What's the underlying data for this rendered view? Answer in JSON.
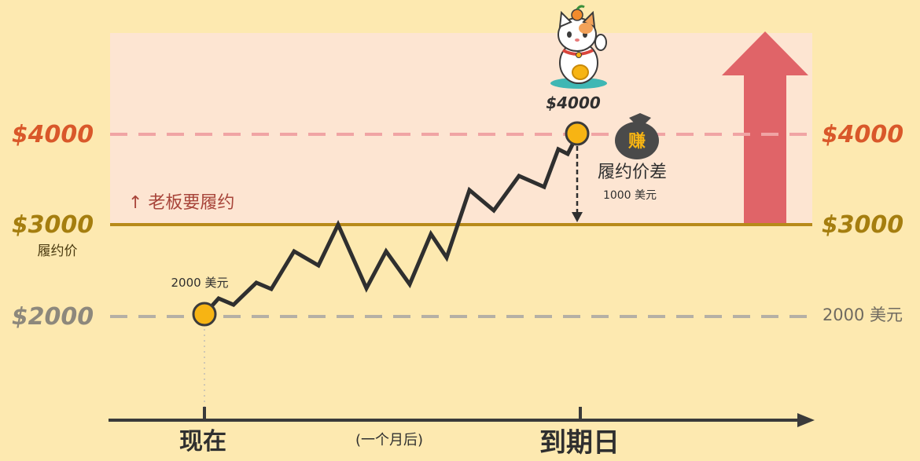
{
  "levels": {
    "high": {
      "left_label": "$4000",
      "right_label": "$4000"
    },
    "strike": {
      "left_label": "$3000",
      "left_sub": "履约价",
      "right_label": "$3000"
    },
    "low": {
      "left_label": "$2000",
      "right_label": "2000 美元"
    }
  },
  "annotations": {
    "must_perform": "↑ 老板要履约",
    "start_price": "2000 美元",
    "end_price": "$4000",
    "spread_title": "履约价差",
    "spread_value": "1000 美元",
    "earn_badge": "赚"
  },
  "timeline": {
    "now": "现在",
    "mid": "(一个月后)",
    "expiry": "到期日"
  },
  "icons": {
    "mascot": "lucky-cat-icon",
    "money_bag": "money-bag-icon",
    "trend": "up-arrow-icon"
  },
  "colors": {
    "background": "#fde9b0",
    "zone": "#fde5d2",
    "high_line": "#f0a4a4",
    "strike_line": "#b78a1a",
    "low_line": "#b5b0a5",
    "path": "#2f2f2f",
    "dot": "#f7b413",
    "arrow": "#e06468",
    "left_high_text": "#d9582a",
    "left_strike_text": "#a57e0f",
    "left_low_text": "#8d887c"
  }
}
